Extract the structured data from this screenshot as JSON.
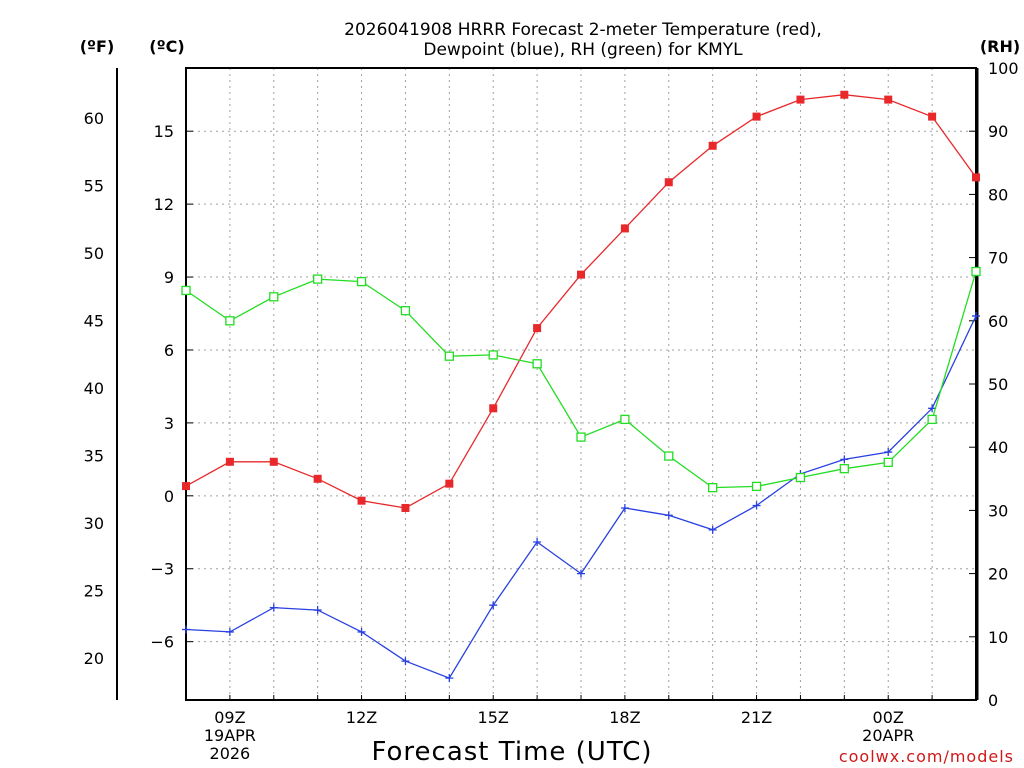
{
  "title_line1": "2026041908 HRRR Forecast 2-meter Temperature (red),",
  "title_line2": "Dewpoint (blue), RH (green) for KMYL",
  "credit": "coolwx.com/models",
  "colors": {
    "temperature": "#e8282b",
    "dewpoint": "#2840e0",
    "rh": "#22dd22",
    "grid": "#a0a0a0"
  },
  "chart_data": {
    "type": "line",
    "title": "2026041908 HRRR Forecast 2-meter Temperature (red), Dewpoint (blue), RH (green) for KMYL",
    "xlabel": "Forecast Time (UTC)",
    "x_hours_since_08Z": [
      0,
      1,
      2,
      3,
      4,
      5,
      6,
      7,
      8,
      9,
      10,
      11,
      12,
      13,
      14,
      15,
      16,
      17,
      18
    ],
    "x_ticks": [
      {
        "hour": 1,
        "lines": [
          "09Z",
          "19APR",
          "2026"
        ]
      },
      {
        "hour": 4,
        "lines": [
          "12Z"
        ]
      },
      {
        "hour": 7,
        "lines": [
          "15Z"
        ]
      },
      {
        "hour": 10,
        "lines": [
          "18Z"
        ]
      },
      {
        "hour": 13,
        "lines": [
          "21Z"
        ]
      },
      {
        "hour": 16,
        "lines": [
          "00Z",
          "20APR"
        ]
      }
    ],
    "left_axis_c": {
      "label": "(ºC)",
      "range": [
        -8.4,
        17.6
      ],
      "ticks": [
        -6,
        -3,
        0,
        3,
        6,
        9,
        12,
        15
      ]
    },
    "left_axis_f": {
      "label": "(ºF)",
      "range": [
        16.9,
        63.7
      ],
      "ticks": [
        20,
        25,
        30,
        35,
        40,
        45,
        50,
        55,
        60
      ]
    },
    "right_axis_rh": {
      "label": "(RH)",
      "range": [
        0,
        100
      ],
      "ticks": [
        0,
        10,
        20,
        30,
        40,
        50,
        60,
        70,
        80,
        90,
        100
      ]
    },
    "series": [
      {
        "name": "Temperature",
        "unit": "C",
        "marker": "filled-square",
        "values": [
          0.4,
          1.4,
          1.4,
          0.7,
          -0.2,
          -0.5,
          0.5,
          3.6,
          6.9,
          9.1,
          11.0,
          12.9,
          14.4,
          15.6,
          16.3,
          16.5,
          16.3,
          15.6,
          13.1
        ]
      },
      {
        "name": "Dewpoint",
        "unit": "C",
        "marker": "plus",
        "values": [
          -5.5,
          -5.6,
          -4.6,
          -4.7,
          -5.6,
          -6.8,
          -7.5,
          -4.5,
          -1.9,
          -3.2,
          -0.5,
          -0.8,
          -1.4,
          -0.4,
          0.9,
          1.5,
          1.8,
          3.6,
          7.4
        ]
      },
      {
        "name": "RH",
        "unit": "%",
        "marker": "open-square",
        "values": [
          64.8,
          60.0,
          63.8,
          66.6,
          66.2,
          61.6,
          54.4,
          54.6,
          53.2,
          41.6,
          44.4,
          38.6,
          33.6,
          33.8,
          35.2,
          36.6,
          37.6,
          44.4,
          67.8
        ]
      }
    ]
  }
}
